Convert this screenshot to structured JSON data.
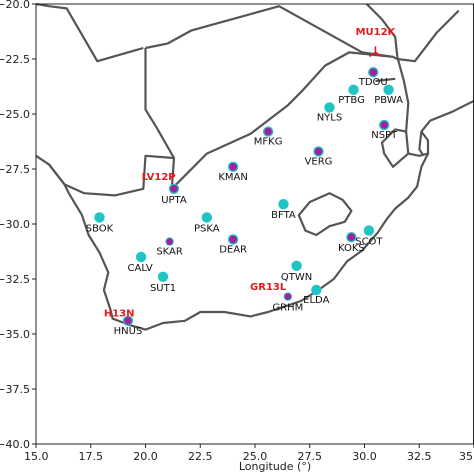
{
  "colors": {
    "coast": "#555555",
    "border": "#555555",
    "cyan": "#20c4c4",
    "magenta": "#a020a0",
    "highlight": "#e41a1c"
  },
  "map": {
    "projection": "plate-carree",
    "lon_range": [
      15.0,
      35.0
    ],
    "lat_range": [
      -40.0,
      -20.0
    ]
  },
  "axes": {
    "x_label": "Longitude (°)",
    "x_ticks": [
      {
        "value": 15.0,
        "label": "15.0"
      },
      {
        "value": 17.5,
        "label": "17.5"
      },
      {
        "value": 20.0,
        "label": "20.0"
      },
      {
        "value": 22.5,
        "label": "22.5"
      },
      {
        "value": 25.0,
        "label": "25.0"
      },
      {
        "value": 27.5,
        "label": "27.5"
      },
      {
        "value": 30.0,
        "label": "30.0"
      },
      {
        "value": 32.5,
        "label": "32.5"
      },
      {
        "value": 35.0,
        "label": "35"
      }
    ],
    "y_ticks": [
      {
        "value": -20.0,
        "label": "−20.0"
      },
      {
        "value": -22.5,
        "label": "−22.5"
      },
      {
        "value": -25.0,
        "label": "−25.0"
      },
      {
        "value": -27.5,
        "label": "−27.5"
      },
      {
        "value": -30.0,
        "label": "−30.0"
      },
      {
        "value": -32.5,
        "label": "−32.5"
      },
      {
        "value": -35.0,
        "label": "−35.0"
      },
      {
        "value": -37.5,
        "label": "−37.5"
      },
      {
        "value": -40.0,
        "label": "−40.0"
      }
    ]
  },
  "coastlines": [
    [
      [
        15.0,
        -26.9
      ],
      [
        15.6,
        -27.3
      ],
      [
        16.3,
        -28.2
      ],
      [
        16.5,
        -28.6
      ],
      [
        17.1,
        -29.6
      ],
      [
        17.4,
        -30.5
      ],
      [
        17.9,
        -31.3
      ],
      [
        18.3,
        -32.2
      ],
      [
        18.1,
        -33.0
      ],
      [
        18.4,
        -33.9
      ],
      [
        18.5,
        -34.3
      ],
      [
        19.3,
        -34.6
      ],
      [
        20.0,
        -34.8
      ],
      [
        20.8,
        -34.5
      ],
      [
        21.8,
        -34.4
      ],
      [
        22.5,
        -34.0
      ],
      [
        23.6,
        -34.0
      ],
      [
        24.8,
        -34.2
      ],
      [
        25.6,
        -34.0
      ],
      [
        26.5,
        -33.7
      ],
      [
        27.1,
        -33.5
      ],
      [
        27.9,
        -33.0
      ],
      [
        28.6,
        -32.5
      ],
      [
        29.2,
        -31.7
      ],
      [
        29.9,
        -31.2
      ],
      [
        30.6,
        -30.4
      ],
      [
        31.0,
        -29.8
      ],
      [
        31.4,
        -29.3
      ],
      [
        32.0,
        -28.8
      ],
      [
        32.4,
        -28.3
      ],
      [
        32.6,
        -27.4
      ],
      [
        32.9,
        -26.8
      ],
      [
        32.9,
        -26.2
      ],
      [
        32.6,
        -25.8
      ],
      [
        33.0,
        -25.3
      ],
      [
        34.0,
        -24.9
      ],
      [
        35.0,
        -24.4
      ]
    ],
    [
      [
        32.6,
        -25.8
      ],
      [
        32.5,
        -26.6
      ],
      [
        32.7,
        -26.9
      ]
    ]
  ],
  "borders": [
    [
      [
        20.0,
        -22.0
      ],
      [
        20.0,
        -24.8
      ],
      [
        20.5,
        -25.6
      ],
      [
        21.3,
        -27.0
      ],
      [
        21.2,
        -28.4
      ]
    ],
    [
      [
        15.0,
        -20.0
      ],
      [
        15.6,
        -20.1
      ],
      [
        16.4,
        -20.2
      ],
      [
        17.8,
        -22.6
      ],
      [
        19.9,
        -22.0
      ]
    ],
    [
      [
        15.6,
        -27.3
      ],
      [
        16.3,
        -28.2
      ],
      [
        17.2,
        -28.6
      ],
      [
        18.6,
        -28.7
      ],
      [
        19.9,
        -28.4
      ],
      [
        20.0,
        -26.9
      ],
      [
        21.3,
        -27.0
      ]
    ],
    [
      [
        20.0,
        -22.0
      ],
      [
        21.0,
        -21.8
      ],
      [
        22.1,
        -21.2
      ],
      [
        26.1,
        -20.1
      ],
      [
        29.9,
        -22.2
      ],
      [
        31.3,
        -22.4
      ]
    ],
    [
      [
        30.1,
        -20.0
      ],
      [
        30.8,
        -20.7
      ],
      [
        31.4,
        -21.5
      ],
      [
        31.5,
        -22.4
      ]
    ],
    [
      [
        31.3,
        -22.4
      ],
      [
        31.5,
        -22.5
      ],
      [
        32.3,
        -22.6
      ],
      [
        33.3,
        -21.3
      ],
      [
        34.3,
        -20.3
      ]
    ],
    [
      [
        31.5,
        -22.4
      ],
      [
        31.8,
        -23.5
      ],
      [
        32.0,
        -24.5
      ],
      [
        31.9,
        -25.8
      ],
      [
        32.0,
        -26.8
      ],
      [
        32.5,
        -26.9
      ],
      [
        32.9,
        -26.8
      ]
    ],
    [
      [
        32.0,
        -26.8
      ],
      [
        31.3,
        -27.4
      ],
      [
        30.9,
        -26.8
      ],
      [
        30.8,
        -26.3
      ],
      [
        31.4,
        -25.7
      ],
      [
        31.9,
        -25.8
      ]
    ],
    [
      [
        21.2,
        -28.4
      ],
      [
        22.8,
        -26.8
      ],
      [
        24.8,
        -25.9
      ],
      [
        26.5,
        -24.6
      ],
      [
        27.2,
        -23.9
      ],
      [
        28.2,
        -22.8
      ],
      [
        29.3,
        -22.2
      ],
      [
        31.3,
        -22.4
      ]
    ],
    [
      [
        30.5,
        -23.5
      ],
      [
        31.4,
        -23.4
      ]
    ]
  ],
  "lesotho": [
    [
      27.0,
      -29.6
    ],
    [
      27.5,
      -29.0
    ],
    [
      28.4,
      -28.6
    ],
    [
      29.0,
      -28.9
    ],
    [
      29.4,
      -29.4
    ],
    [
      29.1,
      -29.9
    ],
    [
      28.4,
      -30.1
    ],
    [
      27.8,
      -30.5
    ],
    [
      27.3,
      -30.3
    ],
    [
      27.0,
      -29.6
    ]
  ],
  "stations": [
    {
      "code": "TDOU",
      "lon": 30.4,
      "lat": -23.1,
      "color": "magenta",
      "label_dx": 0,
      "label_dy": 13
    },
    {
      "code": "PTBG",
      "lon": 29.5,
      "lat": -23.9,
      "color": "cyan",
      "label_dx": -2,
      "label_dy": 13
    },
    {
      "code": "PBWA",
      "lon": 31.1,
      "lat": -23.9,
      "color": "cyan",
      "label_dx": 0,
      "label_dy": 13
    },
    {
      "code": "NYLS",
      "lon": 28.4,
      "lat": -24.7,
      "color": "cyan",
      "label_dx": 0,
      "label_dy": 13
    },
    {
      "code": "NSPT",
      "lon": 30.9,
      "lat": -25.5,
      "color": "magenta",
      "label_dx": 0,
      "label_dy": 13
    },
    {
      "code": "MFKG",
      "lon": 25.6,
      "lat": -25.8,
      "color": "magenta",
      "label_dx": 0,
      "label_dy": 13
    },
    {
      "code": "VERG",
      "lon": 27.9,
      "lat": -26.7,
      "color": "magenta",
      "label_dx": 0,
      "label_dy": 13
    },
    {
      "code": "KMAN",
      "lon": 24.0,
      "lat": -27.4,
      "color": "magenta",
      "label_dx": 0,
      "label_dy": 13
    },
    {
      "code": "UPTA",
      "lon": 21.3,
      "lat": -28.4,
      "color": "magenta",
      "label_dx": 0,
      "label_dy": 14
    },
    {
      "code": "BFTA",
      "lon": 26.3,
      "lat": -29.1,
      "color": "cyan",
      "label_dx": 0,
      "label_dy": 14
    },
    {
      "code": "SBOK",
      "lon": 17.9,
      "lat": -29.7,
      "color": "cyan",
      "label_dx": 0,
      "label_dy": 14
    },
    {
      "code": "PSKA",
      "lon": 22.8,
      "lat": -29.7,
      "color": "cyan",
      "label_dx": 0,
      "label_dy": 14
    },
    {
      "code": "SCOT",
      "lon": 30.2,
      "lat": -30.3,
      "color": "cyan",
      "label_dx": 0,
      "label_dy": 14
    },
    {
      "code": "KOKS",
      "lon": 29.4,
      "lat": -30.6,
      "color": "magenta",
      "label_dx": 0,
      "label_dy": 14
    },
    {
      "code": "SKAR",
      "lon": 21.1,
      "lat": -30.8,
      "color": "magenta_small",
      "label_dx": 0,
      "label_dy": 13
    },
    {
      "code": "DEAR",
      "lon": 24.0,
      "lat": -30.7,
      "color": "magenta",
      "label_dx": 0,
      "label_dy": 13
    },
    {
      "code": "CALV",
      "lon": 19.8,
      "lat": -31.5,
      "color": "cyan",
      "label_dx": -1,
      "label_dy": 14
    },
    {
      "code": "QTWN",
      "lon": 26.9,
      "lat": -31.9,
      "color": "cyan",
      "label_dx": 0,
      "label_dy": 14
    },
    {
      "code": "SUT1",
      "lon": 20.8,
      "lat": -32.4,
      "color": "cyan",
      "label_dx": 0,
      "label_dy": 14
    },
    {
      "code": "ELDA",
      "lon": 27.8,
      "lat": -33.0,
      "color": "cyan",
      "label_dx": 0,
      "label_dy": 13
    },
    {
      "code": "GRHM",
      "lon": 26.5,
      "lat": -33.3,
      "color": "magenta_small",
      "label_dx": 0,
      "label_dy": 14
    },
    {
      "code": "HNUS",
      "lon": 19.2,
      "lat": -34.4,
      "color": "magenta",
      "label_dx": 0,
      "label_dy": 13
    }
  ],
  "highlight_labels": [
    {
      "text": "MU12K",
      "lon": 30.5,
      "lat": -21.4
    },
    {
      "text": "LV12P",
      "lon": 20.6,
      "lat": -28.0
    },
    {
      "text": "GR13L",
      "lon": 25.6,
      "lat": -33.0
    },
    {
      "text": "H13N",
      "lon": 18.8,
      "lat": -34.2
    }
  ],
  "highlight_marker": {
    "name": "MU12K",
    "lon": 30.5,
    "lat": -22.2
  }
}
